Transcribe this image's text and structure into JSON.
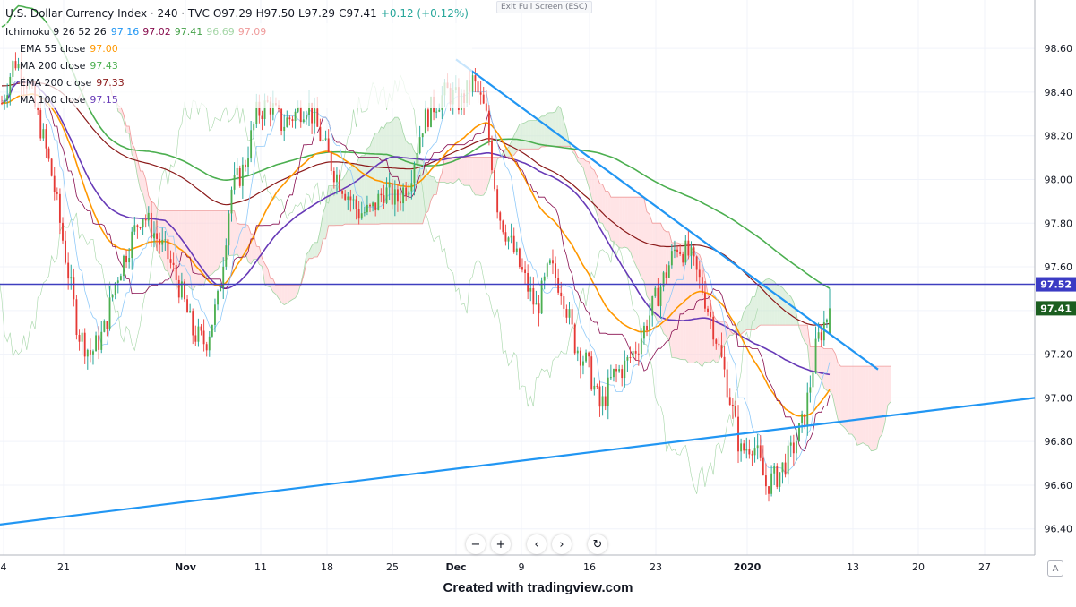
{
  "header": {
    "symbol": "U.S. Dollar Currency Index · 240 · TVC",
    "open": "O97.29",
    "high": "H97.50",
    "low": "L97.29",
    "close": "C97.41",
    "change": "+0.12 (+0.12%)"
  },
  "indicators": [
    {
      "name": "Ichimoku 9 26 52 26",
      "values": [
        "97.16",
        "97.02",
        "97.41",
        "96.69",
        "97.09"
      ],
      "colors": [
        "#2196f3",
        "#880e4f",
        "#43a047",
        "#a5d6a7",
        "#ef9a9a"
      ]
    },
    {
      "name": "EMA 55 close",
      "values": [
        "97.00"
      ],
      "colors": [
        "#ff9800"
      ]
    },
    {
      "name": "MA 200 close",
      "values": [
        "97.43"
      ],
      "colors": [
        "#4caf50"
      ]
    },
    {
      "name": "EMA 200 close",
      "values": [
        "97.33"
      ],
      "colors": [
        "#8b1a1a"
      ]
    },
    {
      "name": "MA 100 close",
      "values": [
        "97.15"
      ],
      "colors": [
        "#673ab7"
      ]
    }
  ],
  "exit_fullscreen": "Exit Full Screen (ESC)",
  "price_labels": {
    "horizontal_line": "97.52",
    "last_price": "97.41"
  },
  "colors": {
    "up": "#26a69a",
    "up_body": "#4caf50",
    "down": "#ef5350",
    "down_body": "#d32f2f",
    "trend_line": "#2196f3",
    "hline": "#3f3fbf",
    "last_price_bg": "#1b5e20",
    "hline_bg": "#3b3bc4",
    "cloud_up": "#c8e6c9",
    "cloud_down": "#ffcdd2"
  },
  "toolbar": {
    "zoom_out": "−",
    "zoom_in": "+",
    "scroll_left": "‹",
    "scroll_right": "›",
    "reset": "↻"
  },
  "footer": "Created with tradingview.com",
  "chart_data": {
    "type": "candlestick",
    "title": "U.S. Dollar Currency Index · 240 · TVC",
    "ylim": [
      96.28,
      98.74
    ],
    "y_ticks": [
      "98.60",
      "98.40",
      "98.20",
      "98.00",
      "97.80",
      "97.60",
      "97.40",
      "97.20",
      "97.00",
      "96.80",
      "96.60",
      "96.40"
    ],
    "x_ticks": [
      "4",
      "21",
      "Nov",
      "11",
      "18",
      "25",
      "Dec",
      "9",
      "16",
      "23",
      "2020",
      "13",
      "20",
      "27"
    ],
    "closes": [
      98.35,
      98.55,
      98.45,
      98.25,
      98.0,
      97.65,
      97.3,
      97.2,
      97.3,
      97.55,
      97.7,
      97.85,
      97.75,
      97.65,
      97.5,
      97.3,
      97.25,
      97.45,
      97.95,
      98.05,
      98.3,
      98.35,
      98.25,
      98.3,
      98.35,
      98.2,
      98.05,
      97.95,
      97.85,
      97.85,
      97.95,
      97.9,
      98.0,
      98.25,
      98.35,
      98.4,
      98.35,
      98.45,
      98.3,
      97.85,
      97.7,
      97.55,
      97.4,
      97.6,
      97.5,
      97.25,
      97.15,
      96.95,
      97.1,
      97.15,
      97.25,
      97.4,
      97.55,
      97.7,
      97.65,
      97.5,
      97.3,
      97.05,
      96.75,
      96.8,
      96.6,
      96.65,
      96.75,
      96.9,
      97.25,
      97.41
    ],
    "horizontal_line": 97.52,
    "last_price": 97.41,
    "trend_lines": [
      {
        "name": "",
        "from": [
          "Dec",
          98.55
        ],
        "to": [
          "13",
          97.13
        ]
      },
      {
        "name": "",
        "from": [
          "4",
          96.42
        ],
        "to": [
          "27+",
          97.0
        ]
      }
    ]
  }
}
